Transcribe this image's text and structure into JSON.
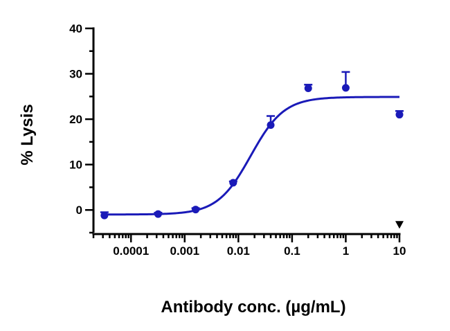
{
  "chart_data": {
    "type": "scatter",
    "xlabel": "Antibody conc. (µg/mL)",
    "ylabel": "% Lysis",
    "xscale": "log",
    "xlim": [
      2e-05,
      10
    ],
    "ylim": [
      -5,
      40
    ],
    "x_tick_labels": [
      "0.0001",
      "0.001",
      "0.01",
      "0.1",
      "1",
      "10"
    ],
    "x_tick_values": [
      0.0001,
      0.001,
      0.01,
      0.1,
      1,
      10
    ],
    "y_tick_labels": [
      "0",
      "10",
      "20",
      "30",
      "40"
    ],
    "y_tick_values": [
      0,
      10,
      20,
      30,
      40
    ],
    "grid": false,
    "color": "#1a1ab8",
    "points": [
      {
        "x": 3.2e-05,
        "y": -1.2,
        "err": 0.7
      },
      {
        "x": 0.00032,
        "y": -0.9,
        "err": 0.3
      },
      {
        "x": 0.0016,
        "y": 0.1,
        "err": 0.3
      },
      {
        "x": 0.008,
        "y": 6.0,
        "err": 0.3
      },
      {
        "x": 0.04,
        "y": 18.7,
        "err": 2.0
      },
      {
        "x": 0.2,
        "y": 26.8,
        "err": 0.8
      },
      {
        "x": 1.0,
        "y": 26.9,
        "err": 3.5
      },
      {
        "x": 10.0,
        "y": 21.0,
        "err": 0.8
      }
    ],
    "outlier_markers": [
      {
        "x": 10.0,
        "y": -3.2,
        "shape": "triangle-down"
      }
    ],
    "fit_curve": {
      "model": "4PL",
      "bottom": -1.0,
      "top": 24.9,
      "ec50": 0.017,
      "hill": 1.4,
      "x_range": [
        3.2e-05,
        10
      ]
    }
  }
}
